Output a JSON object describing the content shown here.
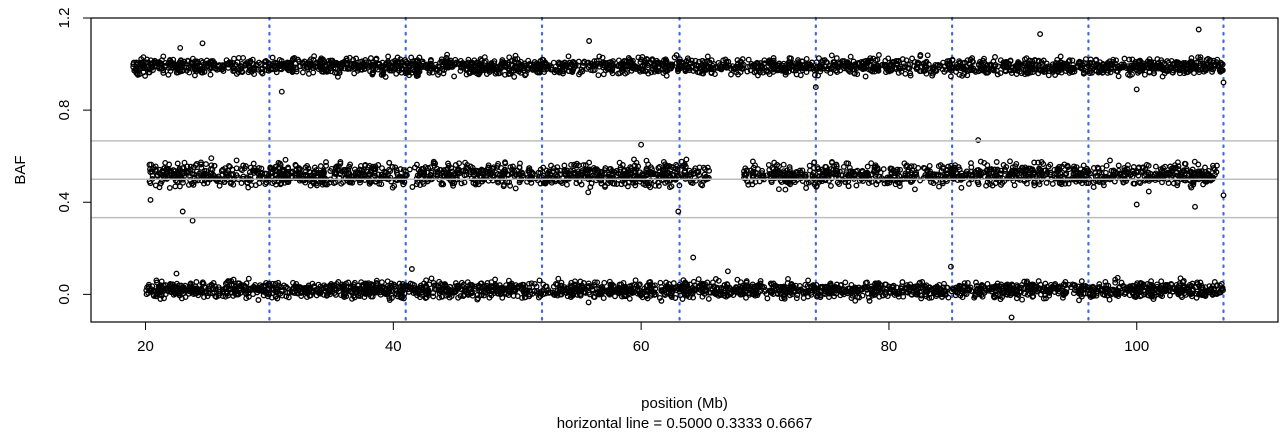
{
  "chart_data": {
    "type": "scatter",
    "title": "",
    "xlabel": "position (Mb)",
    "subtitle": "horizontal line =  0.5000 0.3333 0.6667",
    "ylabel": "BAF",
    "xlim": [
      15.6,
      111.4
    ],
    "ylim": [
      -0.12,
      1.2
    ],
    "x_ticks": [
      20,
      40,
      60,
      80,
      100
    ],
    "x_tick_labels": [
      "20",
      "40",
      "60",
      "80",
      "100"
    ],
    "y_ticks": [
      0.0,
      0.4,
      0.8,
      1.2
    ],
    "y_tick_labels": [
      "0.0",
      "0.4",
      "0.8",
      "1.2"
    ],
    "grid": false,
    "horizontal_lines": [
      0.5,
      0.3333,
      0.6667
    ],
    "horizontal_line_color": "#bebebe",
    "vertical_lines": [
      30.0,
      41.0,
      52.0,
      63.1,
      74.1,
      85.1,
      96.1,
      107.0
    ],
    "vertical_line_color": "#4169e1",
    "marker_color": "#000000",
    "series": [
      {
        "x_range": [
          19.0,
          107.0
        ],
        "center": 0.99,
        "spread": 0.025,
        "outliers": [
          [
            22.8,
            1.07
          ],
          [
            24.6,
            1.09
          ],
          [
            55.8,
            1.1
          ],
          [
            92.2,
            1.13
          ],
          [
            105.0,
            1.15
          ],
          [
            107.0,
            0.92
          ],
          [
            100.0,
            0.89
          ],
          [
            31.0,
            0.88
          ],
          [
            74.1,
            0.9
          ]
        ]
      },
      {
        "x_range": [
          20.3,
          106.5
        ],
        "center": 0.52,
        "spread": 0.035,
        "gap": [
          65.5,
          68.2
        ],
        "outliers": [
          [
            23.0,
            0.36
          ],
          [
            23.8,
            0.32
          ],
          [
            20.4,
            0.41
          ],
          [
            60.0,
            0.65
          ],
          [
            87.2,
            0.67
          ],
          [
            100.0,
            0.39
          ],
          [
            63.0,
            0.36
          ],
          [
            104.7,
            0.38
          ],
          [
            107.0,
            0.43
          ]
        ]
      },
      {
        "x_range": [
          20.0,
          107.0
        ],
        "center": 0.02,
        "spread": 0.025,
        "outliers": [
          [
            64.2,
            0.16
          ],
          [
            85.0,
            0.12
          ],
          [
            89.9,
            -0.1
          ],
          [
            41.5,
            0.11
          ],
          [
            22.5,
            0.09
          ],
          [
            67.0,
            0.1
          ]
        ]
      }
    ]
  }
}
